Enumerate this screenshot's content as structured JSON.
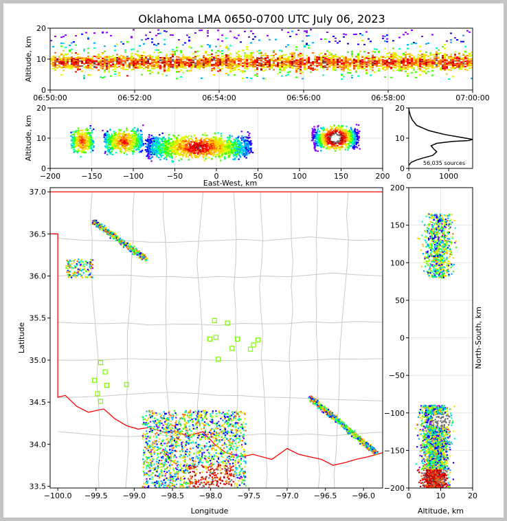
{
  "title": "Oklahoma LMA 0650-0700 UTC July 06, 2023",
  "colors": {
    "frame": "#c4c4c4",
    "border_line": "#ff0000",
    "county_lines": "#c8c8c8",
    "station_marker": "#7cfc00",
    "altitude_profile": "#000000",
    "density_scale": [
      "#8a00ff",
      "#0000ff",
      "#00aaff",
      "#00ffb0",
      "#40ff00",
      "#d8ff00",
      "#ffd000",
      "#ff6a00",
      "#ff0000",
      "#b00000",
      "#6e6e6e",
      "#ffffff"
    ]
  },
  "chart_data": [
    {
      "id": "time_height",
      "type": "heatmap",
      "ylabel": "Altitude, km",
      "xlabel": "",
      "ylim": [
        0,
        20
      ],
      "yticks": [
        0,
        10,
        20
      ],
      "xlim": [
        "06:50:00",
        "07:00:00"
      ],
      "xticks": [
        "06:50:00",
        "06:52:00",
        "06:54:00",
        "06:56:00",
        "06:58:00",
        "07:00:00"
      ],
      "grid": true,
      "source_altitude_band_km": [
        2,
        18
      ],
      "peak_density_altitude_km": 9
    },
    {
      "id": "ew_altitude",
      "type": "heatmap",
      "ylabel": "Altitude, km",
      "xlabel": "East-West, km",
      "xlim": [
        -200,
        200
      ],
      "xticks": [
        -200,
        -150,
        -100,
        -50,
        0,
        50,
        100,
        150,
        200
      ],
      "ylim": [
        0,
        20
      ],
      "yticks": [
        0,
        10,
        20
      ],
      "grid": true,
      "clusters_km": [
        {
          "x_range": [
            -175,
            -150
          ],
          "z_center": 9
        },
        {
          "x_range": [
            -135,
            -90
          ],
          "z_center": 9
        },
        {
          "x_range": [
            -85,
            40
          ],
          "z_center": 7
        },
        {
          "x_range": [
            115,
            170
          ],
          "z_center": 10
        }
      ]
    },
    {
      "id": "altitude_histogram",
      "type": "line",
      "xlim": [
        0,
        1600
      ],
      "xticks": [
        0,
        1000
      ],
      "ylim": [
        0,
        20
      ],
      "yticks": [
        0,
        10,
        20
      ],
      "annotation": "56,035 sources",
      "x": [
        0,
        60,
        200,
        400,
        600,
        700,
        620,
        560,
        700,
        1100,
        1500,
        1600,
        1300,
        900,
        500,
        200,
        90,
        40,
        10,
        0
      ],
      "y": [
        1,
        2,
        2.8,
        3.6,
        4.3,
        5.5,
        6.5,
        7.5,
        8.3,
        8.9,
        9.2,
        9.6,
        10.3,
        11.2,
        12.5,
        14.2,
        16,
        17.5,
        19,
        20
      ]
    },
    {
      "id": "plan_view",
      "type": "scatter",
      "xlabel": "Longitude",
      "ylabel": "Latitude",
      "xlim": [
        -100.1,
        -95.75
      ],
      "ylim": [
        33.48,
        37.05
      ],
      "xticks": [
        -100.0,
        -99.5,
        -99.0,
        -98.5,
        -98.0,
        -97.5,
        -97.0,
        -96.5,
        -96.0
      ],
      "xtick_labels": [
        "−100.0",
        "−99.5",
        "−99.0",
        "−98.5",
        "−98.0",
        "−97.5",
        "−97.0",
        "−96.5",
        "−96.0"
      ],
      "yticks": [
        33.5,
        34.0,
        34.5,
        35.0,
        35.5,
        36.0,
        36.5,
        37.0
      ],
      "ytick_labels": [
        "33.5",
        "34.0",
        "34.5",
        "35.0",
        "35.5",
        "36.0",
        "36.5",
        "37.0"
      ],
      "stations": [
        {
          "lon": -97.95,
          "lat": 35.47
        },
        {
          "lon": -97.78,
          "lat": 35.44
        },
        {
          "lon": -98.01,
          "lat": 35.25
        },
        {
          "lon": -97.93,
          "lat": 35.27
        },
        {
          "lon": -97.65,
          "lat": 35.25
        },
        {
          "lon": -97.38,
          "lat": 35.24
        },
        {
          "lon": -97.44,
          "lat": 35.18
        },
        {
          "lon": -97.48,
          "lat": 35.13
        },
        {
          "lon": -97.72,
          "lat": 35.14
        },
        {
          "lon": -97.9,
          "lat": 35.01
        },
        {
          "lon": -99.44,
          "lat": 34.97
        },
        {
          "lon": -99.38,
          "lat": 34.86
        },
        {
          "lon": -99.52,
          "lat": 34.76
        },
        {
          "lon": -99.36,
          "lat": 34.7
        },
        {
          "lon": -99.1,
          "lat": 34.71
        },
        {
          "lon": -99.48,
          "lat": 34.6
        },
        {
          "lon": -99.44,
          "lat": 34.51
        }
      ],
      "activity_regions": [
        {
          "lon_range": [
            -99.55,
            -98.85
          ],
          "lat_range": [
            36.2,
            36.65
          ]
        },
        {
          "lon_range": [
            -99.9,
            -99.55
          ],
          "lat_range": [
            35.98,
            36.2
          ]
        },
        {
          "lon_range": [
            -98.9,
            -97.55
          ],
          "lat_range": [
            33.48,
            34.4
          ]
        },
        {
          "lon_range": [
            -96.7,
            -95.85
          ],
          "lat_range": [
            33.9,
            34.55
          ]
        }
      ]
    },
    {
      "id": "ns_altitude",
      "type": "heatmap",
      "xlabel": "Altitude, km",
      "ylabel": "North-South, km",
      "xlim": [
        0,
        20
      ],
      "xticks": [
        0,
        10,
        20
      ],
      "ylim": [
        -200,
        200
      ],
      "yticks": [
        -200,
        -150,
        -100,
        -50,
        0,
        50,
        100,
        150,
        200
      ],
      "ytick_labels": [
        "−200",
        "−150",
        "−100",
        "−50",
        "0",
        "50",
        "100",
        "150",
        "200"
      ],
      "grid": true,
      "clusters_km": [
        {
          "y_range": [
            80,
            165
          ],
          "z_center": 9
        },
        {
          "y_range": [
            -200,
            -90
          ],
          "z_center": 8
        }
      ]
    }
  ]
}
